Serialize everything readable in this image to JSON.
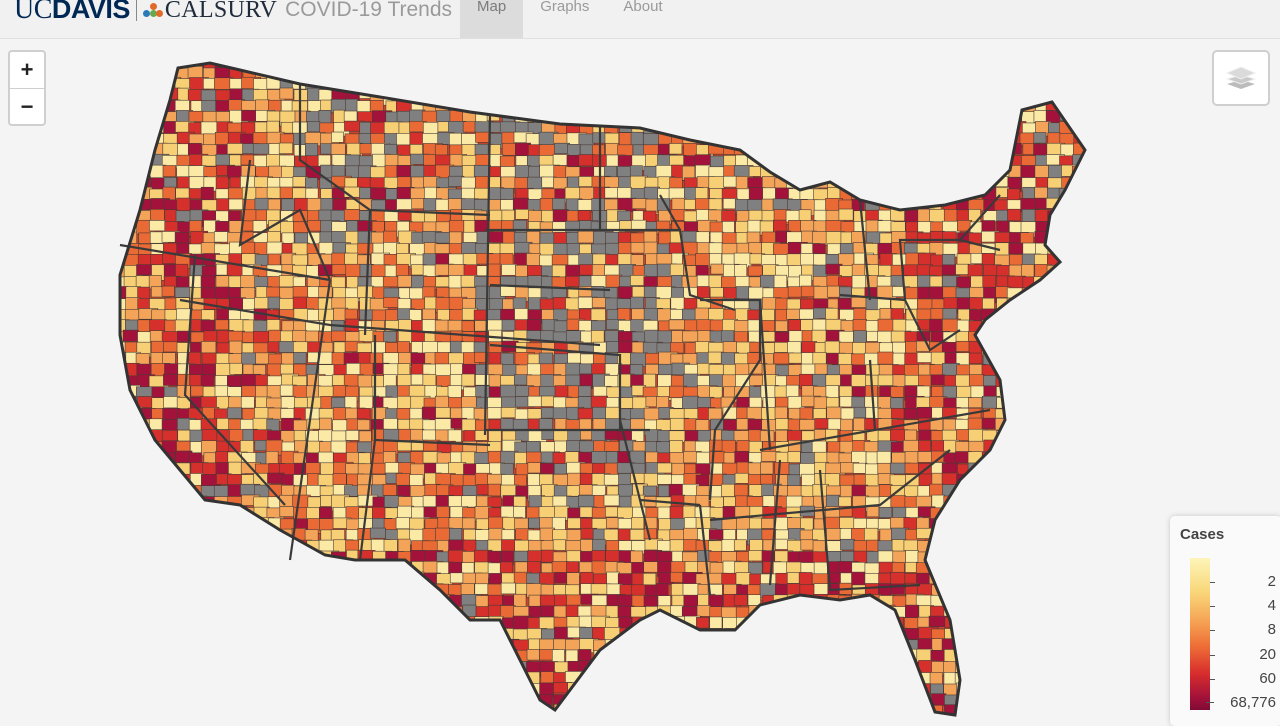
{
  "navbar": {
    "logo_ucdavis_a": "UC",
    "logo_ucdavis_b": "DAVIS",
    "logo_calsurv": "CALSURV",
    "app_title": "COVID-19 Trends",
    "tabs": [
      {
        "label": "Map",
        "active": true
      },
      {
        "label": "Graphs",
        "active": false
      },
      {
        "label": "About",
        "active": false
      }
    ]
  },
  "map_controls": {
    "zoom_in": "+",
    "zoom_out": "−",
    "layers_icon": "layers-icon"
  },
  "legend": {
    "title": "Cases",
    "ticks": [
      "2",
      "4",
      "8",
      "20",
      "60",
      "68,776"
    ],
    "colors": {
      "low": "#fdf5b8",
      "mid_low": "#f6a857",
      "mid": "#ee6e36",
      "high": "#d72d2d",
      "max": "#800b34",
      "no_data": "#808080"
    }
  },
  "map": {
    "subject": "US county-level COVID-19 cases choropleth",
    "border_color": "#3a3a3a"
  }
}
